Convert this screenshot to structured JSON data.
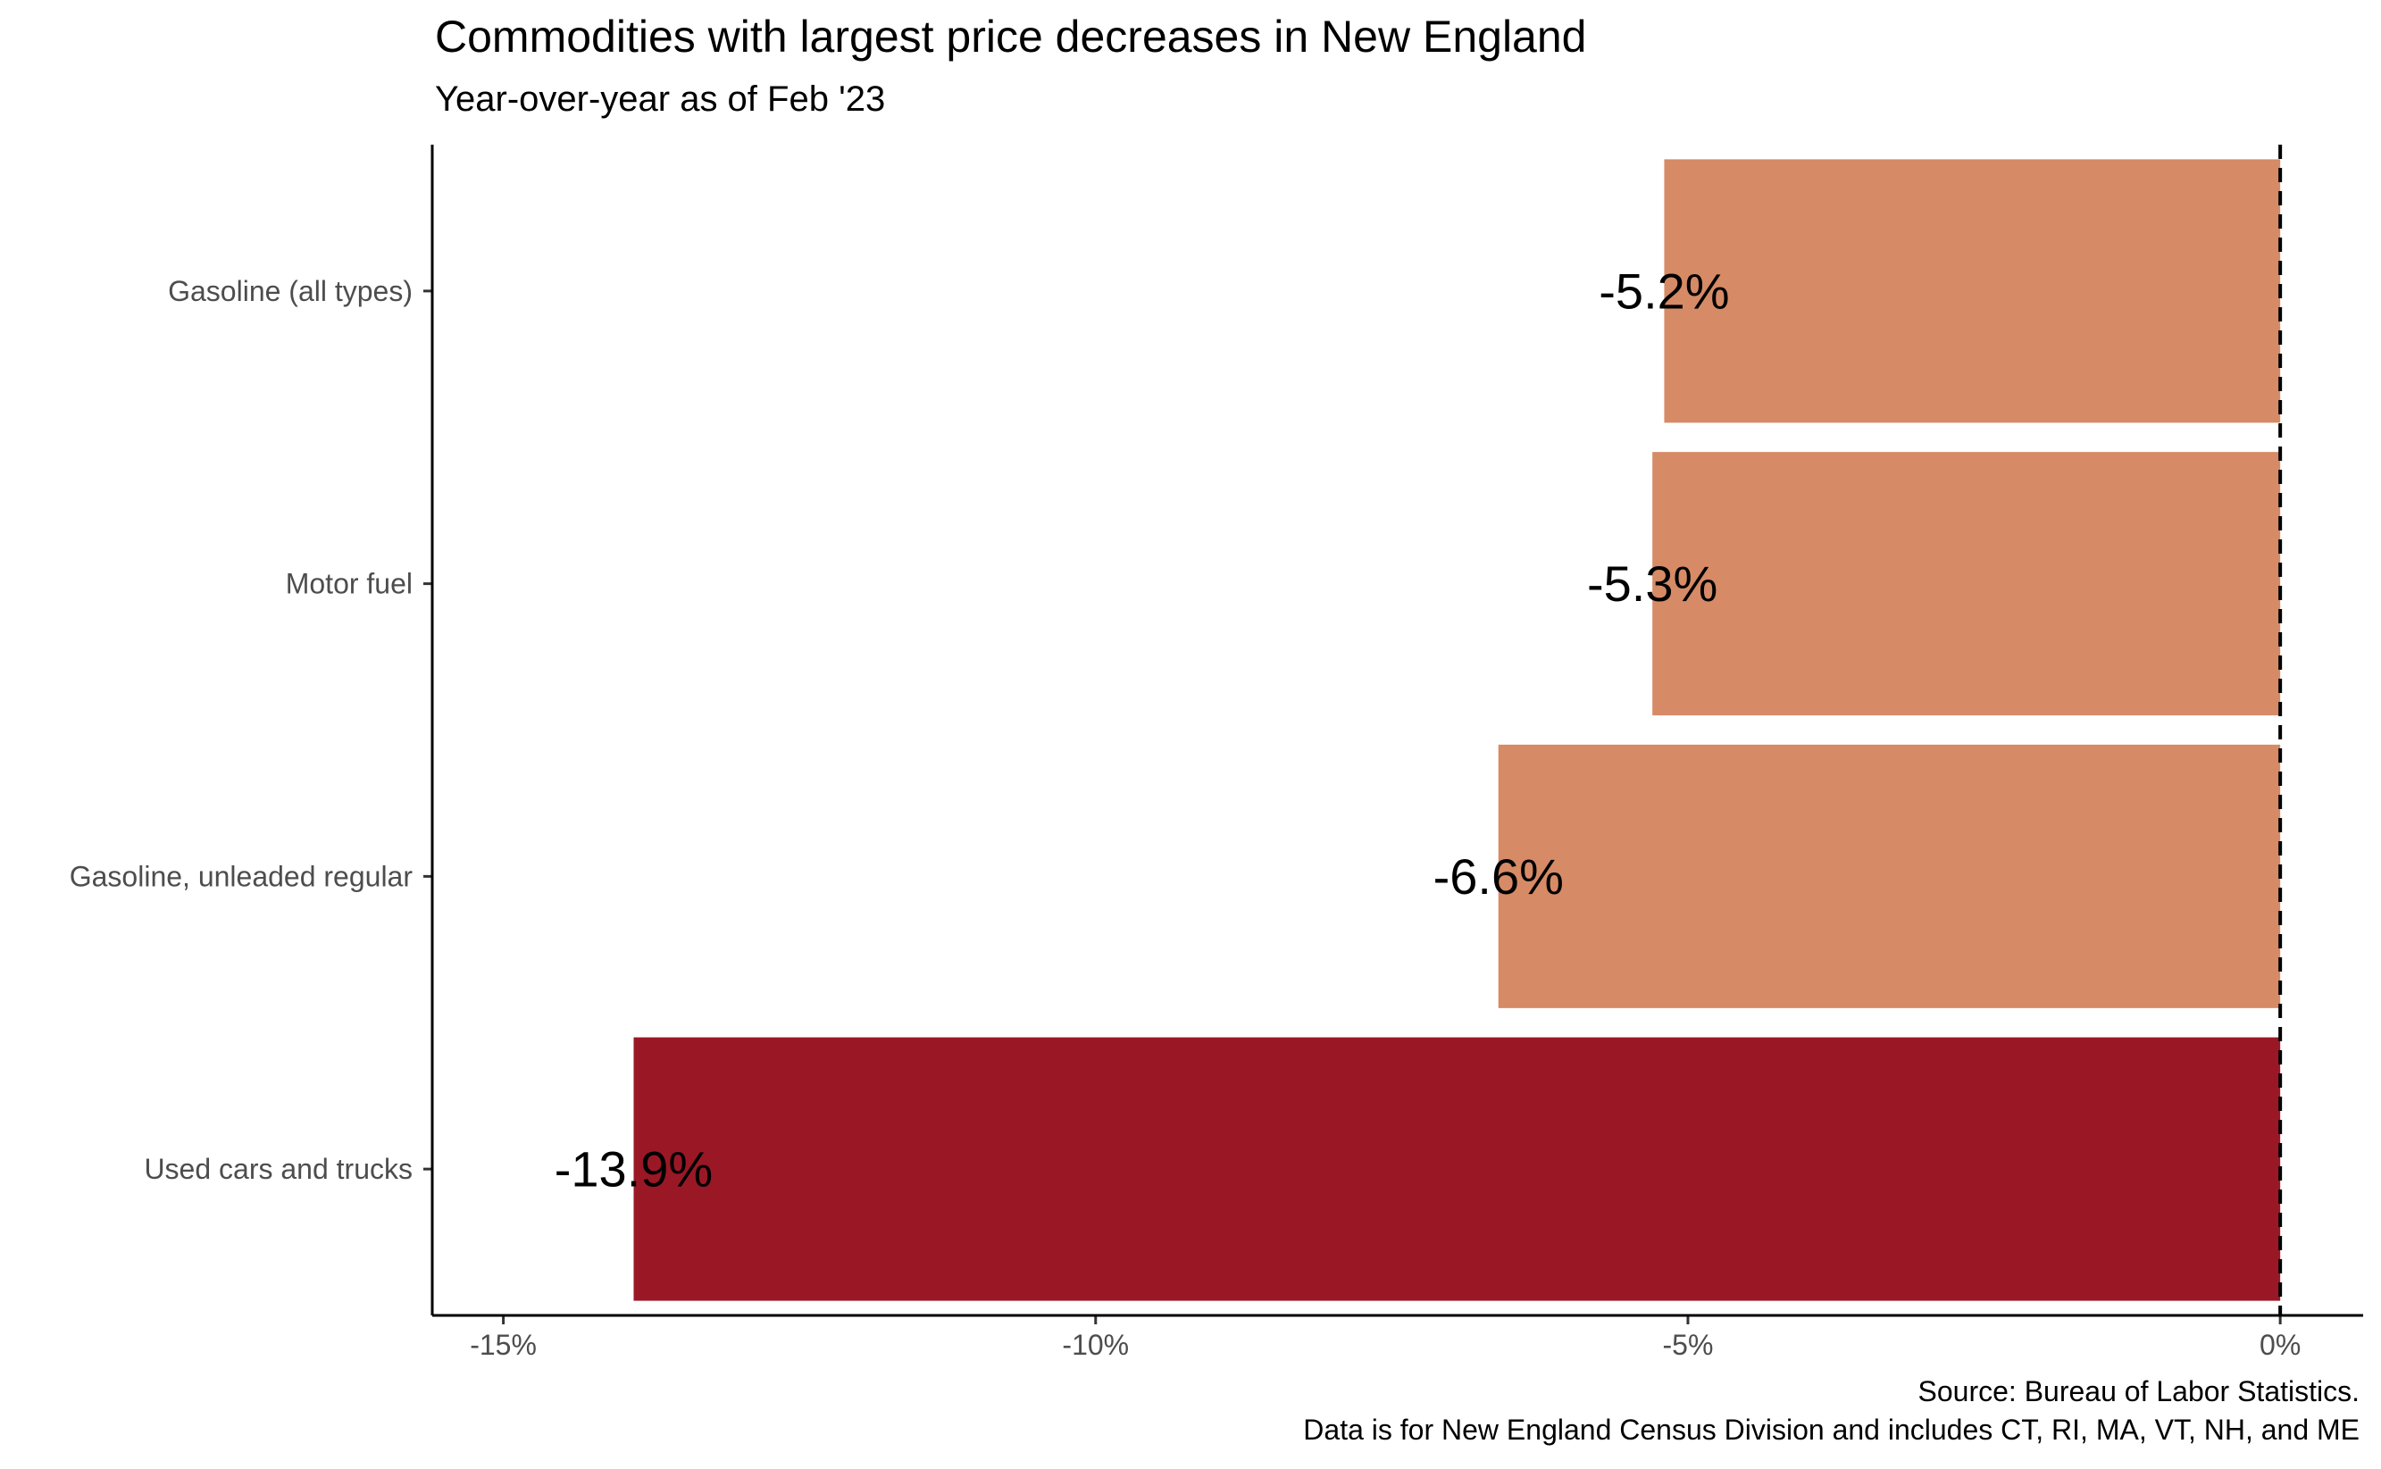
{
  "chart_data": {
    "type": "bar",
    "orientation": "horizontal",
    "title": "Commodities with largest price decreases in New England",
    "subtitle": "Year-over-year as of Feb '23",
    "categories": [
      "Gasoline (all types)",
      "Motor fuel",
      "Gasoline, unleaded regular",
      "Used cars and trucks"
    ],
    "values": [
      -5.2,
      -5.3,
      -6.6,
      -13.9
    ],
    "data_labels": [
      "-5.2%",
      "-5.3%",
      "-6.6%",
      "-13.9%"
    ],
    "bar_colors": [
      "#d68a66",
      "#d68a66",
      "#d68a66",
      "#9a1826"
    ],
    "xlim": [
      -15.6,
      0.7
    ],
    "x_ticks": [
      -15,
      -10,
      -5,
      0
    ],
    "x_tick_labels": [
      "-15%",
      "-10%",
      "-5%",
      "0%"
    ],
    "xlabel": "",
    "ylabel": "",
    "reference_line": {
      "x": 0,
      "style": "dashed"
    },
    "grid": false,
    "caption": [
      "Source: Bureau of Labor Statistics.",
      "Data is for New England Census Division and includes CT, RI, MA, VT, NH, and ME"
    ]
  }
}
